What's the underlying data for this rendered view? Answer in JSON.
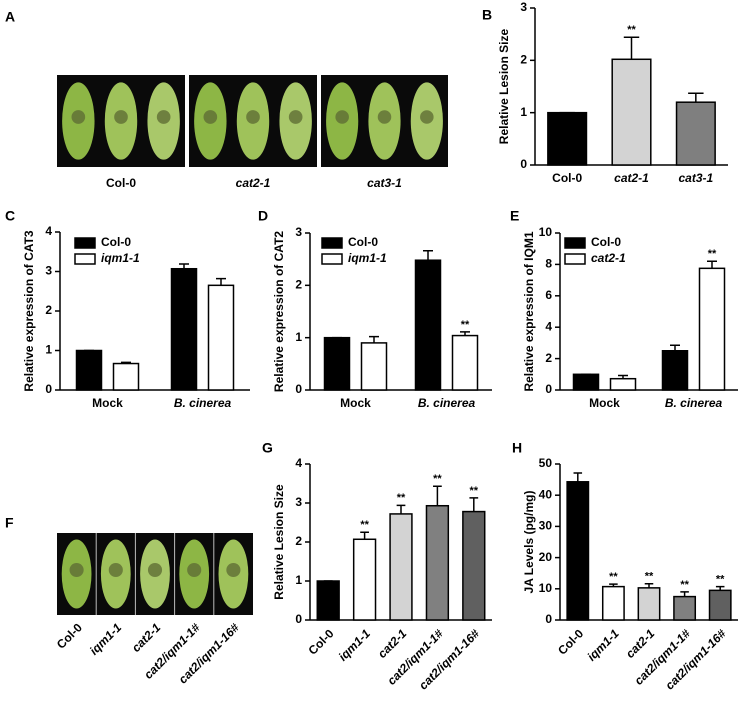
{
  "chart_data": [
    {
      "panel": "A",
      "type": "image",
      "categories": [
        "Col-0",
        "cat2-1",
        "cat3-1"
      ],
      "italic_categories": [
        false,
        true,
        true
      ]
    },
    {
      "panel": "B",
      "type": "bar",
      "ylabel": "Relative Lesion Size",
      "categories": [
        "Col-0",
        "cat2-1",
        "cat3-1"
      ],
      "italic_categories": [
        false,
        true,
        true
      ],
      "values": [
        1,
        2.02,
        1.2
      ],
      "errors": [
        0,
        0.42,
        0.17
      ],
      "colors": [
        "#000000",
        "#d3d3d3",
        "#7f7f7f"
      ],
      "significance": [
        null,
        "**",
        null
      ],
      "ylim": [
        0,
        3
      ],
      "yticks": [
        0,
        1,
        2,
        3
      ]
    },
    {
      "panel": "C",
      "type": "grouped-bar",
      "ylabel": "Relative expression of CAT3",
      "categories": [
        "Mock",
        "B. cinerea"
      ],
      "italic_categories": [
        false,
        true
      ],
      "series": [
        {
          "name": "Col-0",
          "italic": false,
          "color": "#000000",
          "values": [
            1,
            3.07
          ],
          "errors": [
            0,
            0.12
          ],
          "significance": [
            null,
            null
          ]
        },
        {
          "name": "iqm1-1",
          "italic": true,
          "color": "#ffffff",
          "values": [
            0.67,
            2.65
          ],
          "errors": [
            0.03,
            0.17
          ],
          "significance": [
            null,
            null
          ]
        }
      ],
      "ylim": [
        0,
        4
      ],
      "yticks": [
        0,
        1,
        2,
        3,
        4
      ]
    },
    {
      "panel": "D",
      "type": "grouped-bar",
      "ylabel": "Relative expression of CAT2",
      "categories": [
        "Mock",
        "B. cinerea"
      ],
      "italic_categories": [
        false,
        true
      ],
      "series": [
        {
          "name": "Col-0",
          "italic": false,
          "color": "#000000",
          "values": [
            1,
            2.48
          ],
          "errors": [
            0,
            0.18
          ],
          "significance": [
            null,
            null
          ]
        },
        {
          "name": "iqm1-1",
          "italic": true,
          "color": "#ffffff",
          "values": [
            0.9,
            1.04
          ],
          "errors": [
            0.12,
            0.07
          ],
          "significance": [
            null,
            "**"
          ]
        }
      ],
      "ylim": [
        0,
        3
      ],
      "yticks": [
        0,
        1,
        2,
        3
      ]
    },
    {
      "panel": "E",
      "type": "grouped-bar",
      "ylabel": "Relative expression of IQM1",
      "categories": [
        "Mock",
        "B. cinerea"
      ],
      "italic_categories": [
        false,
        true
      ],
      "series": [
        {
          "name": "Col-0",
          "italic": false,
          "color": "#000000",
          "values": [
            1,
            2.5
          ],
          "errors": [
            0,
            0.35
          ],
          "significance": [
            null,
            null
          ]
        },
        {
          "name": "cat2-1",
          "italic": true,
          "color": "#ffffff",
          "values": [
            0.72,
            7.75
          ],
          "errors": [
            0.2,
            0.45
          ],
          "significance": [
            null,
            "**"
          ]
        }
      ],
      "ylim": [
        0,
        10
      ],
      "yticks": [
        0,
        2,
        4,
        6,
        8,
        10
      ]
    },
    {
      "panel": "F",
      "type": "image",
      "categories": [
        "Col-0",
        "iqm1-1",
        "cat2-1",
        "cat2/iqm1-1#",
        "cat2/iqm1-16#"
      ],
      "italic_categories": [
        false,
        true,
        true,
        true,
        true
      ],
      "rotate_labels": true
    },
    {
      "panel": "G",
      "type": "bar",
      "ylabel": "Relative Lesion Size",
      "categories": [
        "Col-0",
        "iqm1-1",
        "cat2-1",
        "cat2/iqm1-1#",
        "cat2/iqm1-16#"
      ],
      "italic_categories": [
        false,
        true,
        true,
        true,
        true
      ],
      "rotate_labels": true,
      "values": [
        1,
        2.07,
        2.72,
        2.93,
        2.78
      ],
      "errors": [
        0,
        0.18,
        0.22,
        0.5,
        0.35
      ],
      "colors": [
        "#000000",
        "#ffffff",
        "#d3d3d3",
        "#808080",
        "#606060"
      ],
      "significance": [
        null,
        "**",
        "**",
        "**",
        "**"
      ],
      "ylim": [
        0,
        4
      ],
      "yticks": [
        0,
        1,
        2,
        3,
        4
      ]
    },
    {
      "panel": "H",
      "type": "bar",
      "ylabel": "JA Levels (pg/mg)",
      "categories": [
        "Col-0",
        "iqm1-1",
        "cat2-1",
        "cat2/iqm1-1#",
        "cat2/iqm1-16#"
      ],
      "italic_categories": [
        false,
        true,
        true,
        true,
        true
      ],
      "rotate_labels": true,
      "values": [
        44.3,
        10.7,
        10.3,
        7.5,
        9.5
      ],
      "errors": [
        2.8,
        0.8,
        1.3,
        1.5,
        1.2
      ],
      "colors": [
        "#000000",
        "#ffffff",
        "#d3d3d3",
        "#808080",
        "#606060"
      ],
      "significance": [
        null,
        "**",
        "**",
        "**",
        "**"
      ],
      "ylim": [
        0,
        50
      ],
      "yticks": [
        0,
        10,
        20,
        30,
        40,
        50
      ]
    }
  ]
}
